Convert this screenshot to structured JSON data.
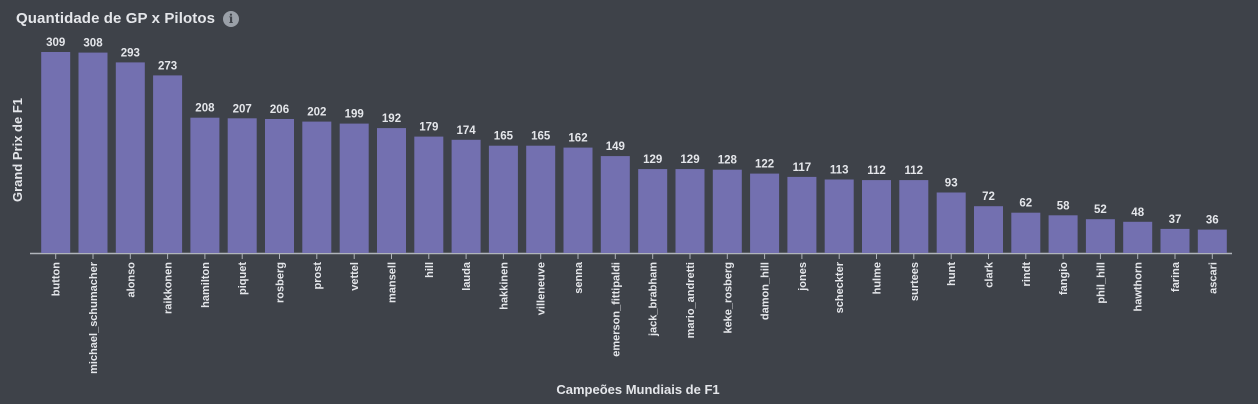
{
  "header": {
    "title": "Quantidade de GP x Pilotos",
    "info_icon": "info-icon"
  },
  "colors": {
    "background": "#3e4249",
    "bar": "#7370b0",
    "text": "#e4e6ea",
    "axis": "#b0b4ba"
  },
  "chart_data": {
    "type": "bar",
    "title": "Quantidade de GP x Pilotos",
    "xlabel": "Campeões Mundiais de F1",
    "ylabel": "Grand Prix de F1",
    "grid": false,
    "legend": "none",
    "ylim": [
      0,
      320
    ],
    "categories": [
      "button",
      "michael_schumacher",
      "alonso",
      "raikkonen",
      "hamilton",
      "piquet",
      "rosberg",
      "prost",
      "vettel",
      "mansell",
      "hill",
      "lauda",
      "hakkinen",
      "villeneuve",
      "senna",
      "emerson_fittipaldi",
      "jack_brabham",
      "mario_andretti",
      "keke_rosberg",
      "damon_hill",
      "jones",
      "scheckter",
      "hulme",
      "surtees",
      "hunt",
      "clark",
      "rindt",
      "fangio",
      "phil_hill",
      "hawthorn",
      "farina",
      "ascari"
    ],
    "values": [
      309,
      308,
      293,
      273,
      208,
      207,
      206,
      202,
      199,
      192,
      179,
      174,
      165,
      165,
      162,
      149,
      129,
      129,
      128,
      122,
      117,
      113,
      112,
      112,
      93,
      72,
      62,
      58,
      52,
      48,
      37,
      36
    ]
  }
}
